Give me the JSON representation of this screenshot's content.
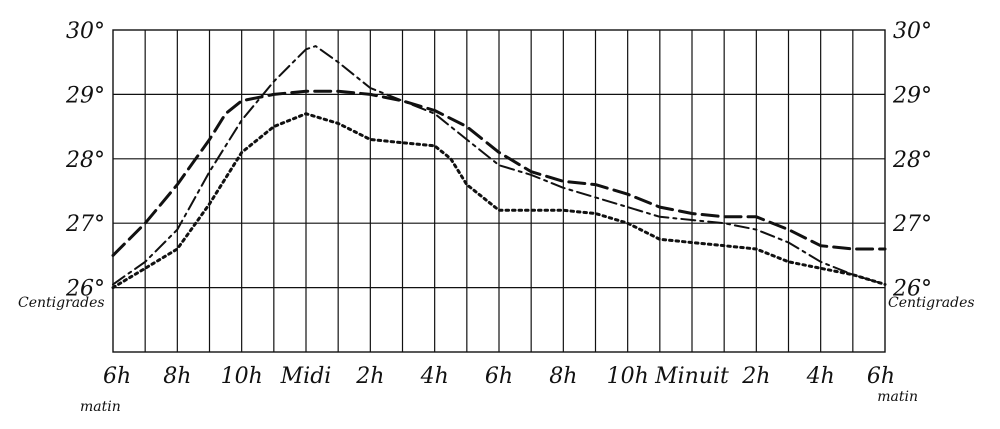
{
  "chart_data": {
    "type": "line",
    "title": "",
    "xlabel": "",
    "ylabel": "",
    "y_unit_label": "Centigrades",
    "ylim": [
      25,
      30
    ],
    "y_ticks": [
      "26°",
      "27°",
      "28°",
      "29°",
      "30°"
    ],
    "x_range_hours": [
      6,
      30
    ],
    "x_ticks": [
      "6h",
      "8h",
      "10h",
      "Midi",
      "2h",
      "4h",
      "6h",
      "8h",
      "10h",
      "Minuit",
      "2h",
      "4h",
      "6h"
    ],
    "x_start_sublabel": "matin",
    "x_end_sublabel": "matin",
    "grid": true,
    "series": [
      {
        "style": "dashed",
        "x": [
          6,
          7,
          8,
          9,
          9.5,
          10,
          11,
          12,
          13,
          14,
          15,
          16,
          17,
          18,
          19,
          20,
          21,
          22,
          23,
          24,
          25,
          26,
          27,
          28,
          29,
          30
        ],
        "values": [
          26.5,
          27.0,
          27.6,
          28.3,
          28.7,
          28.9,
          29.0,
          29.05,
          29.05,
          29.0,
          28.9,
          28.75,
          28.5,
          28.1,
          27.8,
          27.65,
          27.6,
          27.45,
          27.25,
          27.15,
          27.1,
          27.1,
          26.9,
          26.65,
          26.6,
          26.6
        ]
      },
      {
        "style": "dash-dot",
        "x": [
          6,
          7,
          8,
          9,
          10,
          11,
          12,
          12.3,
          13,
          14,
          15,
          16,
          17,
          18,
          19,
          20,
          21,
          22,
          23,
          24,
          25,
          26,
          27,
          28,
          29,
          30
        ],
        "values": [
          26.05,
          26.4,
          26.9,
          27.8,
          28.6,
          29.2,
          29.7,
          29.75,
          29.5,
          29.1,
          28.9,
          28.7,
          28.3,
          27.9,
          27.75,
          27.55,
          27.4,
          27.25,
          27.1,
          27.05,
          27.0,
          26.9,
          26.7,
          26.4,
          26.2,
          26.05
        ]
      },
      {
        "style": "dotted",
        "x": [
          6,
          7,
          8,
          9,
          10,
          11,
          12,
          13,
          14,
          15,
          16,
          16.5,
          17,
          18,
          19,
          20,
          21,
          22,
          23,
          24,
          25,
          26,
          27,
          28,
          29,
          30
        ],
        "values": [
          26.0,
          26.3,
          26.6,
          27.3,
          28.1,
          28.5,
          28.7,
          28.55,
          28.3,
          28.25,
          28.2,
          28.0,
          27.6,
          27.2,
          27.2,
          27.2,
          27.15,
          27.0,
          26.75,
          26.7,
          26.65,
          26.6,
          26.4,
          26.3,
          26.2,
          26.05
        ]
      }
    ]
  }
}
